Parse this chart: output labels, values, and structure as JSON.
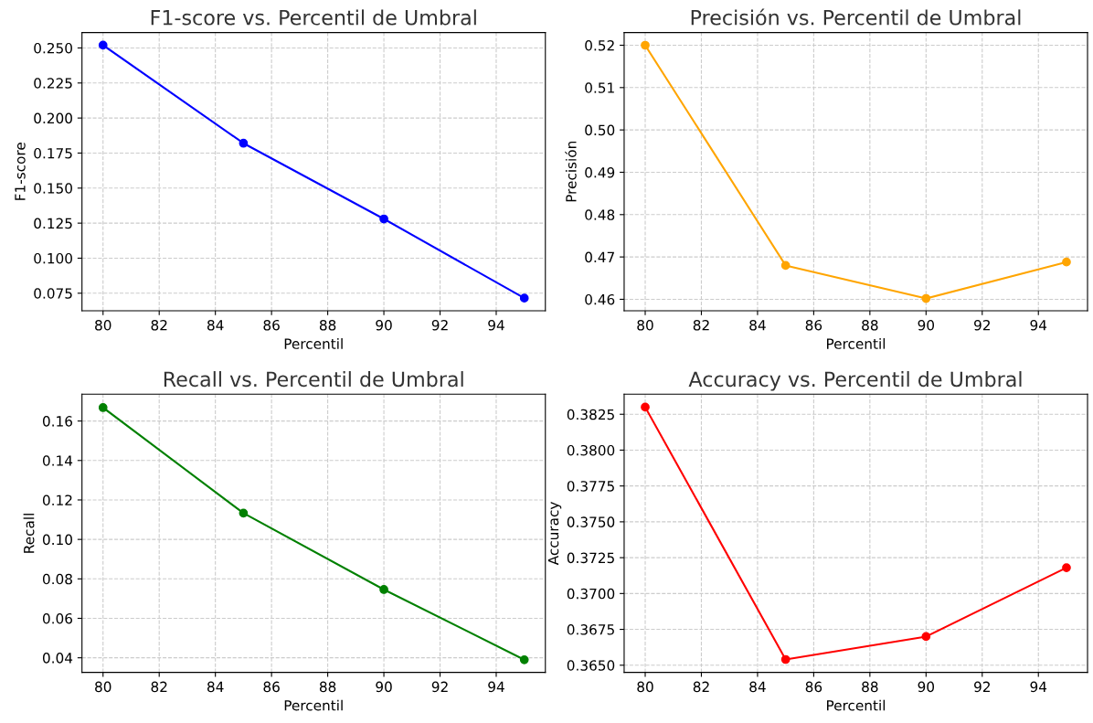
{
  "chart_data": [
    {
      "type": "line",
      "title": "F1-score vs. Percentil de Umbral",
      "xlabel": "Percentil",
      "ylabel": "F1-score",
      "x": [
        80,
        85,
        90,
        95
      ],
      "series": [
        {
          "color": "#0000ff",
          "values": [
            0.252,
            0.182,
            0.128,
            0.0715
          ]
        }
      ],
      "xlim": [
        79.25,
        95.75
      ],
      "xticks": [
        80,
        82,
        84,
        86,
        88,
        90,
        92,
        94
      ],
      "ylim": [
        0.0625,
        0.261
      ],
      "yticks": [
        {
          "value": 0.075,
          "label": "0.075"
        },
        {
          "value": 0.1,
          "label": "0.100"
        },
        {
          "value": 0.125,
          "label": "0.125"
        },
        {
          "value": 0.15,
          "label": "0.150"
        },
        {
          "value": 0.175,
          "label": "0.175"
        },
        {
          "value": 0.2,
          "label": "0.200"
        },
        {
          "value": 0.225,
          "label": "0.225"
        },
        {
          "value": 0.25,
          "label": "0.250"
        }
      ],
      "grid": true,
      "marker": "circle",
      "line_style": "solid"
    },
    {
      "type": "line",
      "title": "Precisión vs. Percentil de Umbral",
      "xlabel": "Percentil",
      "ylabel": "Precisión",
      "x": [
        80,
        85,
        90,
        95
      ],
      "series": [
        {
          "color": "#ffa500",
          "values": [
            0.52,
            0.468,
            0.4602,
            0.4688
          ]
        }
      ],
      "xlim": [
        79.25,
        95.75
      ],
      "xticks": [
        80,
        82,
        84,
        86,
        88,
        90,
        92,
        94
      ],
      "ylim": [
        0.4573,
        0.523
      ],
      "yticks": [
        0.46,
        0.47,
        0.48,
        0.49,
        {
          "value": 0.5,
          "label": "0.50"
        },
        0.51,
        0.52
      ],
      "grid": true,
      "marker": "circle",
      "line_style": "solid"
    },
    {
      "type": "line",
      "title": "Recall vs. Percentil de Umbral",
      "xlabel": "Percentil",
      "ylabel": "Recall",
      "x": [
        80,
        85,
        90,
        95
      ],
      "series": [
        {
          "color": "#008000",
          "values": [
            0.1668,
            0.1133,
            0.0746,
            0.039
          ]
        }
      ],
      "xlim": [
        79.25,
        95.75
      ],
      "xticks": [
        80,
        82,
        84,
        86,
        88,
        90,
        92,
        94
      ],
      "ylim": [
        0.0326,
        0.1736
      ],
      "yticks": [
        0.04,
        0.06,
        0.08,
        {
          "value": 0.1,
          "label": "0.10"
        },
        0.12,
        0.14,
        0.16
      ],
      "grid": true,
      "marker": "circle",
      "line_style": "solid"
    },
    {
      "type": "line",
      "title": "Accuracy vs. Percentil de Umbral",
      "xlabel": "Percentil",
      "ylabel": "Accuracy",
      "x": [
        80,
        85,
        90,
        95
      ],
      "series": [
        {
          "color": "#ff0000",
          "values": [
            0.383,
            0.3654,
            0.367,
            0.3718
          ]
        }
      ],
      "xlim": [
        79.25,
        95.75
      ],
      "xticks": [
        80,
        82,
        84,
        86,
        88,
        90,
        92,
        94
      ],
      "ylim": [
        0.3645,
        0.3839
      ],
      "yticks": [
        {
          "value": 0.365,
          "label": "0.3650"
        },
        0.3675,
        {
          "value": 0.37,
          "label": "0.3700"
        },
        0.3725,
        {
          "value": 0.375,
          "label": "0.3750"
        },
        0.3775,
        {
          "value": 0.38,
          "label": "0.3800"
        },
        0.3825
      ],
      "grid": true,
      "marker": "circle",
      "line_style": "solid"
    }
  ]
}
